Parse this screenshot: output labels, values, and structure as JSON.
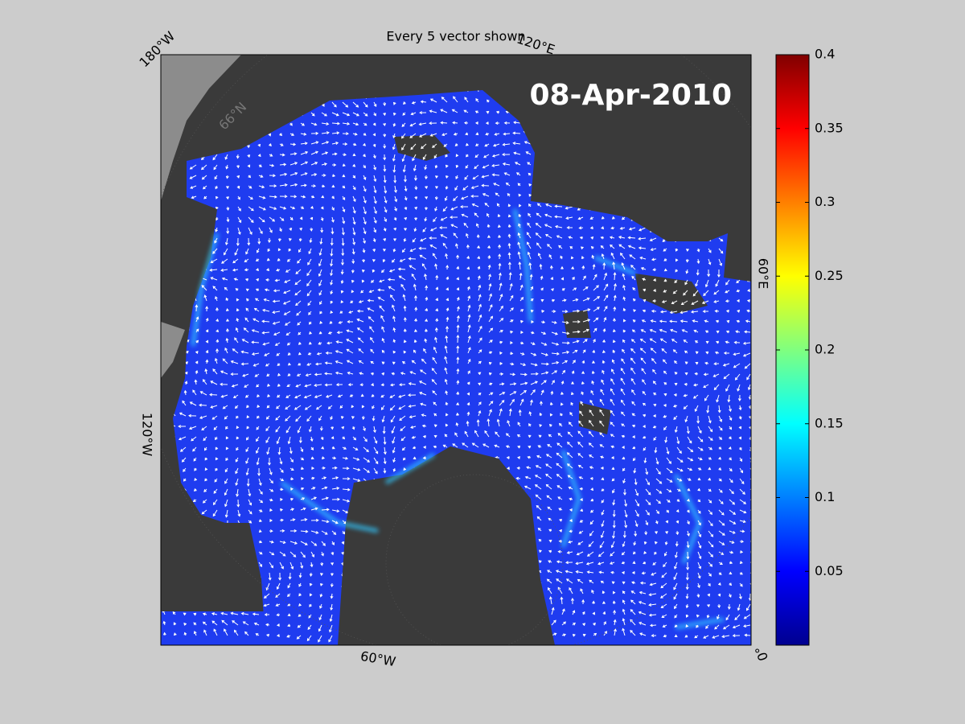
{
  "title": "Every 5 vector shown",
  "date_label": "08-Apr-2010",
  "map_labels": {
    "top_left": "180°W",
    "top_right": "120°E",
    "right": "60°E",
    "bottom_right": "0°",
    "bottom": "60°W",
    "left": "120°W",
    "latitude": "66°N"
  },
  "colorbar": {
    "range": [
      0,
      0.4
    ],
    "ticks": [
      0.05,
      0.1,
      0.15,
      0.2,
      0.25,
      0.3,
      0.35,
      0.4
    ]
  }
}
